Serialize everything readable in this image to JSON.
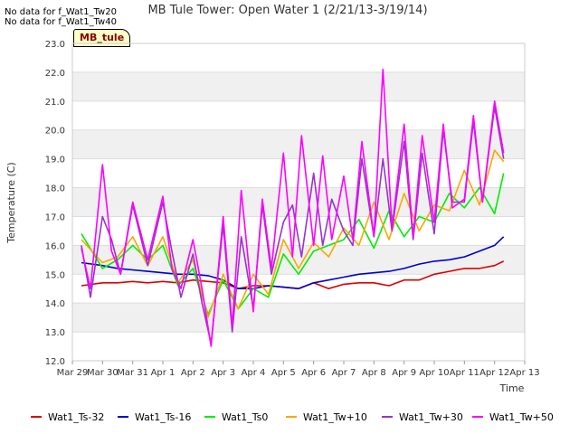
{
  "notes": [
    "No data for f_Wat1_Tw20",
    "No data for f_Wat1_Tw40"
  ],
  "badge": "MB_tule",
  "chart_data": {
    "type": "line",
    "title": "MB Tule Tower: Open Water 1 (2/21/13-3/19/14)",
    "xlabel": "Time",
    "ylabel": "Temperature (C)",
    "ylim": [
      12.0,
      23.0
    ],
    "yticks": [
      "12.0",
      "13.0",
      "14.0",
      "15.0",
      "16.0",
      "17.0",
      "18.0",
      "19.0",
      "20.0",
      "21.0",
      "22.0",
      "23.0"
    ],
    "xticks": [
      "Mar 29",
      "Mar 30",
      "Mar 31",
      "Apr 1",
      "Apr 2",
      "Apr 3",
      "Apr 4",
      "Apr 5",
      "Apr 6",
      "Apr 7",
      "Apr 8",
      "Apr 9",
      "Apr 10",
      "Apr 11",
      "Apr 12",
      "Apr 13"
    ],
    "xlim_days": [
      0,
      15
    ],
    "grid": "horizontal bands",
    "legend_position": "bottom",
    "series": [
      {
        "name": "Wat1_Ts-32",
        "color": "#dd0000",
        "x": [
          0.3,
          1,
          1.5,
          2,
          2.5,
          3,
          3.5,
          4,
          4.5,
          5,
          5.5,
          6,
          6.5,
          7,
          7.5,
          8,
          8.5,
          9,
          9.5,
          10,
          10.5,
          11,
          11.5,
          12,
          12.5,
          13,
          13.5,
          14,
          14.3
        ],
        "y": [
          14.6,
          14.7,
          14.7,
          14.75,
          14.7,
          14.75,
          14.7,
          14.8,
          14.75,
          14.7,
          14.5,
          14.6,
          14.6,
          14.55,
          14.5,
          14.7,
          14.5,
          14.65,
          14.7,
          14.7,
          14.6,
          14.8,
          14.8,
          15.0,
          15.1,
          15.2,
          15.2,
          15.3,
          15.45
        ]
      },
      {
        "name": "Wat1_Ts-16",
        "color": "#0000cc",
        "x": [
          0.3,
          1,
          1.5,
          2,
          2.5,
          3,
          3.5,
          4,
          4.5,
          5,
          5.5,
          6,
          6.5,
          7,
          7.5,
          8,
          8.5,
          9,
          9.5,
          10,
          10.5,
          11,
          11.5,
          12,
          12.5,
          13,
          13.5,
          14,
          14.3
        ],
        "y": [
          15.4,
          15.3,
          15.2,
          15.15,
          15.1,
          15.05,
          15.0,
          15.0,
          14.95,
          14.8,
          14.5,
          14.5,
          14.6,
          14.55,
          14.5,
          14.7,
          14.8,
          14.9,
          15.0,
          15.05,
          15.1,
          15.2,
          15.35,
          15.45,
          15.5,
          15.6,
          15.8,
          16.0,
          16.3
        ]
      },
      {
        "name": "Wat1_Ts0",
        "color": "#00ee00",
        "x": [
          0.3,
          1,
          1.5,
          2,
          2.5,
          3,
          3.5,
          4,
          4.5,
          5,
          5.5,
          6,
          6.5,
          7,
          7.5,
          8,
          8.5,
          9,
          9.5,
          10,
          10.5,
          11,
          11.5,
          12,
          12.5,
          13,
          13.5,
          14,
          14.3
        ],
        "y": [
          16.4,
          15.2,
          15.5,
          16.0,
          15.5,
          16.0,
          14.6,
          15.2,
          13.6,
          14.8,
          13.8,
          14.5,
          14.2,
          15.7,
          15.0,
          15.8,
          16.0,
          16.2,
          16.9,
          15.9,
          17.2,
          16.3,
          17.0,
          16.8,
          17.8,
          17.3,
          18.0,
          17.1,
          18.5
        ]
      },
      {
        "name": "Wat1_Tw+10",
        "color": "#ffa500",
        "x": [
          0.3,
          1,
          1.5,
          2,
          2.5,
          3,
          3.5,
          4,
          4.5,
          5,
          5.5,
          6,
          6.5,
          7,
          7.5,
          8,
          8.5,
          9,
          9.5,
          10,
          10.5,
          11,
          11.5,
          12,
          12.5,
          13,
          13.5,
          14,
          14.3
        ],
        "y": [
          16.2,
          15.4,
          15.6,
          16.3,
          15.3,
          16.3,
          14.7,
          15.5,
          13.5,
          15.0,
          13.8,
          15.0,
          14.3,
          16.2,
          15.2,
          16.1,
          15.6,
          16.6,
          16.0,
          17.5,
          16.2,
          17.8,
          16.5,
          17.4,
          17.2,
          18.6,
          17.4,
          19.3,
          18.9
        ]
      },
      {
        "name": "Wat1_Tw+30",
        "color": "#9933cc",
        "x": [
          0.3,
          0.6,
          1,
          1.3,
          1.6,
          2,
          2.5,
          3,
          3.3,
          3.6,
          4,
          4.3,
          4.6,
          5,
          5.3,
          5.6,
          6,
          6.3,
          6.6,
          7,
          7.3,
          7.6,
          8,
          8.3,
          8.6,
          9,
          9.3,
          9.6,
          10,
          10.3,
          10.6,
          11,
          11.3,
          11.6,
          12,
          12.3,
          12.6,
          13,
          13.3,
          13.6,
          14,
          14.3
        ],
        "y": [
          16.0,
          14.2,
          17.0,
          16.2,
          15.0,
          17.4,
          15.3,
          17.5,
          15.8,
          14.2,
          15.7,
          14.0,
          12.6,
          16.7,
          13.0,
          16.3,
          13.8,
          17.4,
          15.0,
          16.8,
          17.4,
          15.6,
          18.5,
          16.0,
          17.6,
          16.5,
          16.0,
          19.0,
          16.3,
          19.0,
          16.5,
          19.6,
          16.2,
          19.2,
          16.4,
          20.0,
          17.5,
          17.5,
          20.3,
          17.5,
          20.8,
          19.0
        ]
      },
      {
        "name": "Wat1_Tw+50",
        "color": "#ff00ff",
        "x": [
          0.3,
          0.6,
          1,
          1.3,
          1.6,
          2,
          2.5,
          3,
          3.3,
          3.6,
          4,
          4.3,
          4.6,
          5,
          5.3,
          5.6,
          6,
          6.3,
          6.6,
          7,
          7.3,
          7.6,
          8,
          8.3,
          8.6,
          9,
          9.3,
          9.6,
          10,
          10.3,
          10.6,
          11,
          11.3,
          11.6,
          12,
          12.3,
          12.6,
          13,
          13.3,
          13.6,
          14,
          14.3
        ],
        "y": [
          15.9,
          14.5,
          18.8,
          15.8,
          15.0,
          17.5,
          15.5,
          17.7,
          15.2,
          14.5,
          16.2,
          14.5,
          12.5,
          17.0,
          13.2,
          17.9,
          13.7,
          17.6,
          15.2,
          19.2,
          15.6,
          19.8,
          16.0,
          19.1,
          16.2,
          18.4,
          16.2,
          19.6,
          16.3,
          22.1,
          16.6,
          20.2,
          16.3,
          19.8,
          16.8,
          20.2,
          17.3,
          17.6,
          20.5,
          17.5,
          21.0,
          19.2
        ]
      }
    ]
  }
}
